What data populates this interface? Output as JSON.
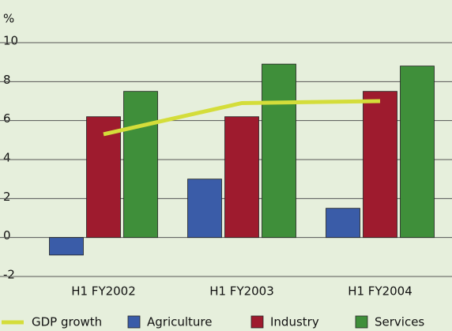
{
  "chart_data": {
    "type": "bar",
    "y_label": "%",
    "categories": [
      "H1 FY2002",
      "H1 FY2003",
      "H1 FY2004"
    ],
    "series": [
      {
        "name": "Agriculture",
        "color": "#3a5ca8",
        "values": [
          -0.9,
          3.0,
          1.5
        ]
      },
      {
        "name": "Industry",
        "color": "#9e1b2e",
        "values": [
          6.2,
          6.2,
          7.5
        ]
      },
      {
        "name": "Services",
        "color": "#3f8f3a",
        "values": [
          7.5,
          8.9,
          8.8
        ]
      }
    ],
    "line_series": {
      "name": "GDP growth",
      "color": "#d4dd3a",
      "values": [
        5.3,
        6.9,
        7.0
      ]
    },
    "ylim": [
      -2,
      10
    ],
    "yticks": [
      -2,
      0,
      2,
      4,
      6,
      8,
      10
    ],
    "grid": true
  }
}
